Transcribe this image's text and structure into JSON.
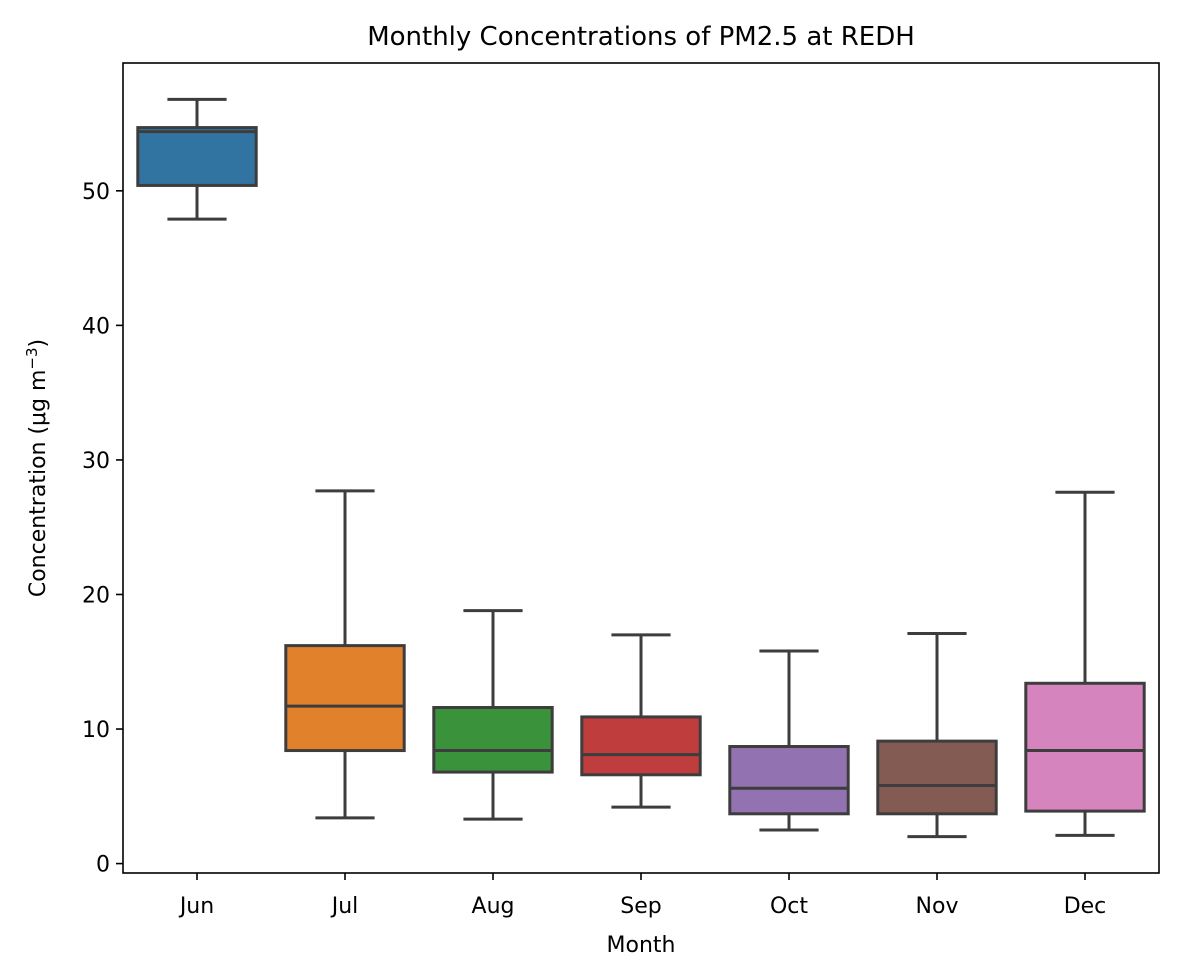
{
  "chart_data": {
    "type": "box",
    "title": "Monthly Concentrations of PM2.5 at REDH",
    "xlabel": "Month",
    "ylabel": "Concentration (μg m",
    "ylabel_superscript": "−3",
    "ylabel_suffix": ")",
    "ylim": [
      -0.7,
      59.5
    ],
    "yticks": [
      0,
      10,
      20,
      30,
      40,
      50
    ],
    "grid": false,
    "categories": [
      "Jun",
      "Jul",
      "Aug",
      "Sep",
      "Oct",
      "Nov",
      "Dec"
    ],
    "boxes": [
      {
        "category": "Jun",
        "whisker_low": 47.9,
        "q1": 50.4,
        "median": 54.4,
        "q3": 54.7,
        "whisker_high": 56.8,
        "color": "#3274a1"
      },
      {
        "category": "Jul",
        "whisker_low": 3.4,
        "q1": 8.4,
        "median": 11.7,
        "q3": 16.2,
        "whisker_high": 27.7,
        "color": "#e1812c"
      },
      {
        "category": "Aug",
        "whisker_low": 3.3,
        "q1": 6.8,
        "median": 8.4,
        "q3": 11.6,
        "whisker_high": 18.8,
        "color": "#3a923a"
      },
      {
        "category": "Sep",
        "whisker_low": 4.2,
        "q1": 6.6,
        "median": 8.1,
        "q3": 10.9,
        "whisker_high": 17.0,
        "color": "#c03d3e"
      },
      {
        "category": "Oct",
        "whisker_low": 2.5,
        "q1": 3.7,
        "median": 5.6,
        "q3": 8.7,
        "whisker_high": 15.8,
        "color": "#9372b2"
      },
      {
        "category": "Nov",
        "whisker_low": 2.0,
        "q1": 3.7,
        "median": 5.8,
        "q3": 9.1,
        "whisker_high": 17.1,
        "color": "#845b53"
      },
      {
        "category": "Dec",
        "whisker_low": 2.1,
        "q1": 3.9,
        "median": 8.4,
        "q3": 13.4,
        "whisker_high": 27.6,
        "color": "#d684bd"
      }
    ],
    "line_color": "#3d3d3d"
  }
}
